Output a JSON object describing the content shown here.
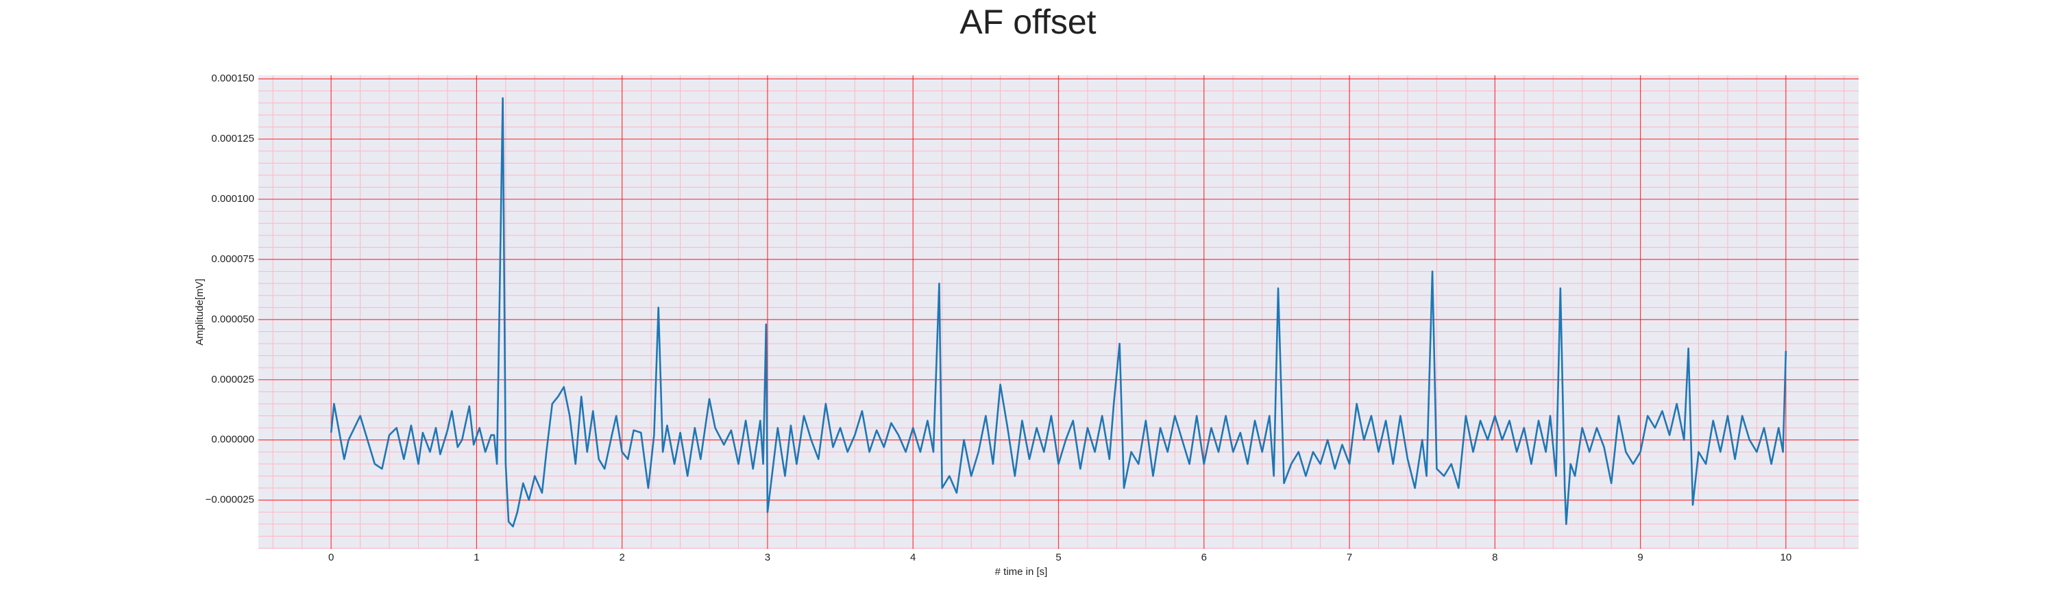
{
  "chart_data": {
    "type": "line",
    "title": "AF offset",
    "xlabel": "# time in [s]",
    "ylabel": "Amplitude[mV]",
    "x": [
      0,
      0.02,
      0.09,
      0.12,
      0.2,
      0.3,
      0.35,
      0.4,
      0.45,
      0.5,
      0.55,
      0.6,
      0.63,
      0.68,
      0.72,
      0.75,
      0.8,
      0.83,
      0.87,
      0.9,
      0.95,
      0.98,
      1.02,
      1.06,
      1.1,
      1.12,
      1.14,
      1.18,
      1.2,
      1.22,
      1.25,
      1.28,
      1.32,
      1.36,
      1.4,
      1.45,
      1.48,
      1.52,
      1.56,
      1.6,
      1.64,
      1.68,
      1.72,
      1.76,
      1.8,
      1.84,
      1.88,
      1.93,
      1.96,
      2.0,
      2.04,
      2.08,
      2.13,
      2.18,
      2.22,
      2.25,
      2.28,
      2.31,
      2.36,
      2.4,
      2.45,
      2.5,
      2.54,
      2.6,
      2.64,
      2.7,
      2.75,
      2.8,
      2.85,
      2.9,
      2.95,
      2.97,
      2.99,
      3.0,
      3.03,
      3.07,
      3.12,
      3.16,
      3.2,
      3.25,
      3.3,
      3.35,
      3.4,
      3.45,
      3.5,
      3.55,
      3.6,
      3.65,
      3.7,
      3.75,
      3.8,
      3.85,
      3.9,
      3.95,
      4.0,
      4.05,
      4.1,
      4.14,
      4.18,
      4.2,
      4.25,
      4.3,
      4.35,
      4.4,
      4.45,
      4.5,
      4.55,
      4.6,
      4.65,
      4.7,
      4.75,
      4.8,
      4.85,
      4.9,
      4.95,
      5.0,
      5.05,
      5.1,
      5.15,
      5.2,
      5.25,
      5.3,
      5.35,
      5.38,
      5.42,
      5.45,
      5.5,
      5.55,
      5.6,
      5.65,
      5.7,
      5.75,
      5.8,
      5.85,
      5.9,
      5.95,
      6.0,
      6.05,
      6.1,
      6.15,
      6.2,
      6.25,
      6.3,
      6.35,
      6.4,
      6.45,
      6.48,
      6.51,
      6.55,
      6.6,
      6.65,
      6.7,
      6.75,
      6.8,
      6.85,
      6.9,
      6.95,
      7.0,
      7.05,
      7.1,
      7.15,
      7.2,
      7.25,
      7.3,
      7.35,
      7.4,
      7.45,
      7.5,
      7.53,
      7.57,
      7.6,
      7.65,
      7.7,
      7.75,
      7.8,
      7.85,
      7.9,
      7.95,
      8.0,
      8.05,
      8.1,
      8.15,
      8.2,
      8.25,
      8.3,
      8.35,
      8.38,
      8.42,
      8.45,
      8.48,
      8.49,
      8.52,
      8.55,
      8.6,
      8.65,
      8.7,
      8.75,
      8.8,
      8.85,
      8.9,
      8.95,
      9.0,
      9.05,
      9.1,
      9.15,
      9.2,
      9.25,
      9.3,
      9.33,
      9.36,
      9.4,
      9.45,
      9.5,
      9.55,
      9.6,
      9.65,
      9.7,
      9.75,
      9.8,
      9.85,
      9.9,
      9.95,
      9.98,
      10.0
    ],
    "values": [
      3e-06,
      1.5e-05,
      -8e-06,
      0,
      1e-05,
      -1e-05,
      -1.2e-05,
      2e-06,
      5e-06,
      -8e-06,
      6e-06,
      -1e-05,
      3e-06,
      -5e-06,
      5e-06,
      -6e-06,
      4e-06,
      1.2e-05,
      -3e-06,
      0,
      1.4e-05,
      -2e-06,
      5e-06,
      -5e-06,
      2e-06,
      2e-06,
      -1e-05,
      0.000142,
      -1e-05,
      -3.4e-05,
      -3.6e-05,
      -3e-05,
      -1.8e-05,
      -2.5e-05,
      -1.5e-05,
      -2.2e-05,
      -5e-06,
      1.5e-05,
      1.8e-05,
      2.2e-05,
      1e-05,
      -1e-05,
      1.8e-05,
      -5e-06,
      1.2e-05,
      -8e-06,
      -1.2e-05,
      2e-06,
      1e-05,
      -5e-06,
      -8e-06,
      4e-06,
      3e-06,
      -2e-05,
      2e-06,
      5.5e-05,
      -5e-06,
      6e-06,
      -1e-05,
      3e-06,
      -1.5e-05,
      5e-06,
      -8e-06,
      1.7e-05,
      5e-06,
      -2e-06,
      4e-06,
      -1e-05,
      8e-06,
      -1.2e-05,
      8e-06,
      -1e-05,
      4.8e-05,
      -3e-05,
      -1.5e-05,
      5e-06,
      -1.5e-05,
      6e-06,
      -1e-05,
      1e-05,
      0,
      -8e-06,
      1.5e-05,
      -3e-06,
      5e-06,
      -5e-06,
      2e-06,
      1.2e-05,
      -5e-06,
      4e-06,
      -3e-06,
      7e-06,
      2e-06,
      -5e-06,
      5e-06,
      -5e-06,
      8e-06,
      -5e-06,
      6.5e-05,
      -2e-05,
      -1.5e-05,
      -2.2e-05,
      0,
      -1.5e-05,
      -5e-06,
      1e-05,
      -1e-05,
      2.3e-05,
      5e-06,
      -1.5e-05,
      8e-06,
      -8e-06,
      5e-06,
      -5e-06,
      1e-05,
      -1e-05,
      0,
      8e-06,
      -1.2e-05,
      5e-06,
      -5e-06,
      1e-05,
      -8e-06,
      1.5e-05,
      4e-05,
      -2e-05,
      -5e-06,
      -1e-05,
      8e-06,
      -1.5e-05,
      5e-06,
      -5e-06,
      1e-05,
      0,
      -1e-05,
      1e-05,
      -1e-05,
      5e-06,
      -5e-06,
      1e-05,
      -5e-06,
      3e-06,
      -1e-05,
      8e-06,
      -5e-06,
      1e-05,
      -1.5e-05,
      6.3e-05,
      -1.8e-05,
      -1e-05,
      -5e-06,
      -1.5e-05,
      -5e-06,
      -1e-05,
      0,
      -1.2e-05,
      -2e-06,
      -1e-05,
      1.5e-05,
      0,
      1e-05,
      -5e-06,
      8e-06,
      -1e-05,
      1e-05,
      -8e-06,
      -2e-05,
      0,
      -1.5e-05,
      7e-05,
      -1.2e-05,
      -1.5e-05,
      -1e-05,
      -2e-05,
      1e-05,
      -5e-06,
      8e-06,
      0,
      1e-05,
      0,
      8e-06,
      -5e-06,
      5e-06,
      -1e-05,
      8e-06,
      -5e-06,
      1e-05,
      -1.5e-05,
      6.3e-05,
      -2e-05,
      -3.5e-05,
      -1e-05,
      -1.5e-05,
      5e-06,
      -5e-06,
      5e-06,
      -3e-06,
      -1.8e-05,
      1e-05,
      -5e-06,
      -1e-05,
      -5e-06,
      1e-05,
      5e-06,
      1.2e-05,
      2e-06,
      1.5e-05,
      0,
      3.8e-05,
      -2.7e-05,
      -5e-06,
      -1e-05,
      8e-06,
      -5e-06,
      1e-05,
      -8e-06,
      1e-05,
      0,
      -5e-06,
      5e-06,
      -1e-05,
      5e-06,
      -5e-06,
      3.7e-05
    ],
    "color": "#1f77b4",
    "xlim": [
      -0.5,
      10.5
    ],
    "xticks": [
      0,
      1,
      2,
      3,
      4,
      5,
      6,
      7,
      8,
      9,
      10
    ],
    "ylim": [
      -4.53e-05,
      0.0001515
    ],
    "yticks": [
      {
        "value": -2.5e-05,
        "label": "−0.000025"
      },
      {
        "value": 0,
        "label": "0.000000"
      },
      {
        "value": 2.5e-05,
        "label": "0.000025"
      },
      {
        "value": 5e-05,
        "label": "0.000050"
      },
      {
        "value": 7.5e-05,
        "label": "0.000075"
      },
      {
        "value": 0.0001,
        "label": "0.000100"
      },
      {
        "value": 0.000125,
        "label": "0.000125"
      },
      {
        "value": 0.00015,
        "label": "0.000150"
      }
    ],
    "grid": true,
    "grid_color": "#ff0000",
    "minor_grid_color": "#ffb6c1",
    "background": "#eaeaf2"
  }
}
